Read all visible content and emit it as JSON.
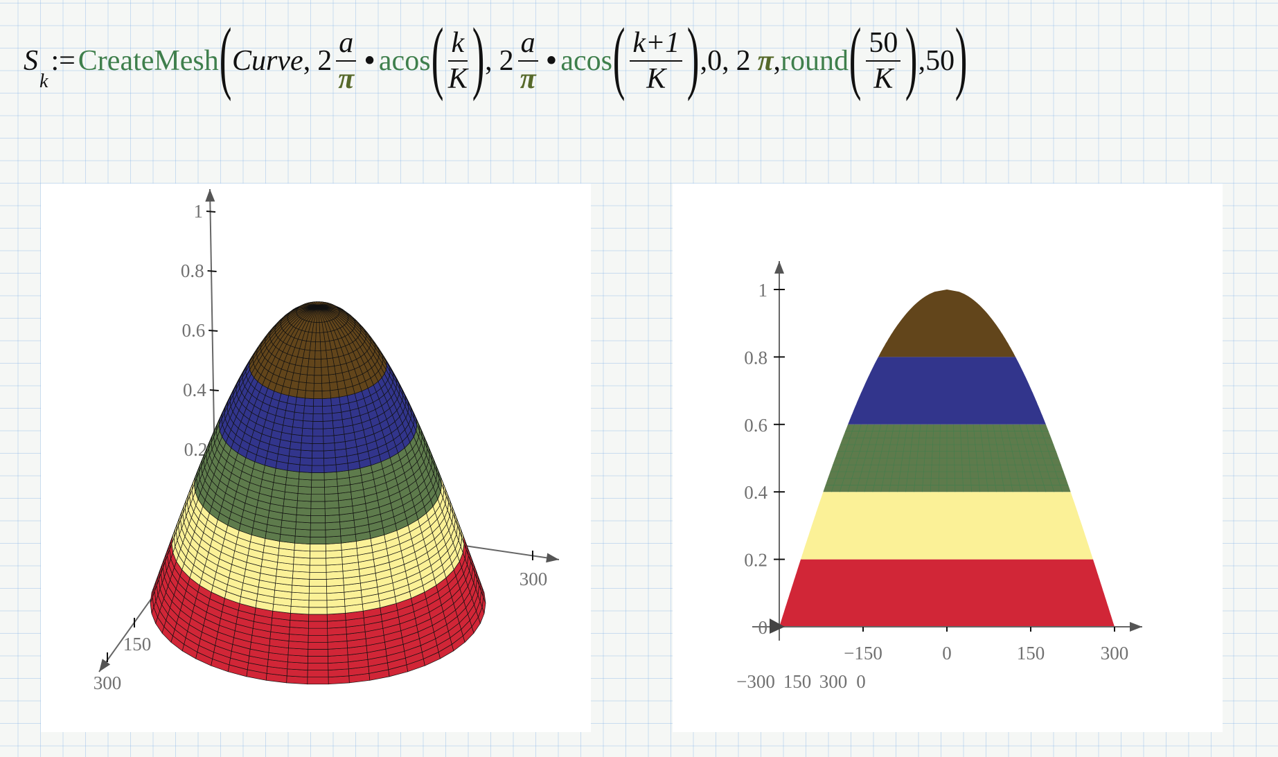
{
  "formula": {
    "lhs": "S",
    "lhs_sub": "k",
    "assign": ":=",
    "func": "CreateMesh",
    "open": "(",
    "close": ")",
    "arg_curve": "Curve",
    "comma": ",",
    "two": "2",
    "num_a": "a",
    "den_pi": "π",
    "dot": "•",
    "acos": "acos",
    "num_k": "k",
    "den_K": "K",
    "num_k1": "k+1",
    "zero": "0",
    "pi": "π",
    "round": "round",
    "num_50": "50",
    "last": "50"
  },
  "chart_data": [
    {
      "type": "surface",
      "view": "3d",
      "surface": "z = cos(π·r/(2a)), a = 300, revolved over θ from 0 to 2π",
      "a": 300,
      "bands": [
        {
          "z": [
            0,
            0.2
          ],
          "color": "#d12637"
        },
        {
          "z": [
            0.2,
            0.4
          ],
          "color": "#fbf197"
        },
        {
          "z": [
            0.4,
            0.6
          ],
          "color": "#5e7b4c"
        },
        {
          "z": [
            0.6,
            0.8
          ],
          "color": "#32358c"
        },
        {
          "z": [
            0.8,
            1.0
          ],
          "color": "#62451b"
        }
      ],
      "mesh": {
        "theta_divisions": 50,
        "rings_per_band": 10
      },
      "z_ticks": [
        "0.2",
        "0.4",
        "0.6",
        "0.8",
        "1"
      ],
      "x_ticks": [
        "300"
      ],
      "y_ticks": [
        "150",
        "300"
      ],
      "zlim": [
        0,
        1
      ]
    },
    {
      "type": "area",
      "view": "front",
      "profile": "z = cos(π·|x|/(2a)), a = 300",
      "a": 300,
      "bands": [
        {
          "z": [
            0,
            0.2
          ],
          "color": "#d12637"
        },
        {
          "z": [
            0.2,
            0.4
          ],
          "color": "#fbf197"
        },
        {
          "z": [
            0.4,
            0.6
          ],
          "color": "#5e7b4c"
        },
        {
          "z": [
            0.6,
            0.8
          ],
          "color": "#32358c"
        },
        {
          "z": [
            0.8,
            1.0
          ],
          "color": "#62451b"
        }
      ],
      "x_ticks": [
        "−150",
        "0",
        "150",
        "300"
      ],
      "x_tick_values": [
        -150,
        0,
        150,
        300
      ],
      "overlapping_origin_labels": [
        "−300",
        "150",
        "300",
        "0"
      ],
      "y_ticks": [
        "0",
        "0.2",
        "0.4",
        "0.6",
        "0.8",
        "1"
      ],
      "y_tick_values": [
        0,
        0.2,
        0.4,
        0.6,
        0.8,
        1
      ],
      "xlim": [
        -300,
        300
      ],
      "ylim": [
        0,
        1
      ]
    }
  ]
}
